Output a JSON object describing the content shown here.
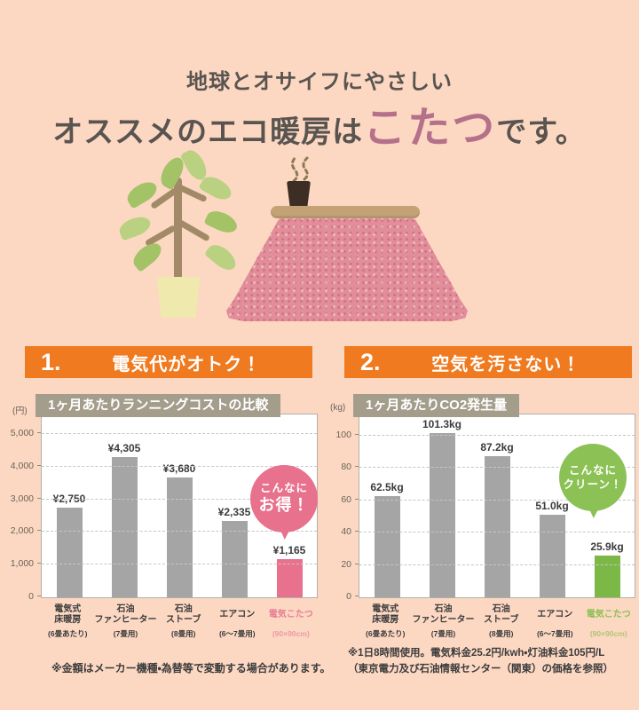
{
  "page": {
    "background": "#fcd8c3"
  },
  "header": {
    "subtitle": "地球とオサイフにやさしい",
    "title_prefix": "オススメのエコ暖房は",
    "title_highlight": "こたつ",
    "title_suffix": "です。",
    "highlight_color": "#b5718a"
  },
  "sections": [
    {
      "number": "1.",
      "label": "電気代がオトク！"
    },
    {
      "number": "2.",
      "label": "空気を汚さない！"
    }
  ],
  "chart_data": [
    {
      "type": "bar",
      "title": "1ヶ月あたりランニングコストの比較",
      "unit_label": "(円)",
      "xlabel": "",
      "ylabel": "円",
      "ylim": [
        0,
        5600
      ],
      "grid": "dashed-horizontal",
      "yticks": [
        0,
        1000,
        2000,
        3000,
        4000,
        5000
      ],
      "ytick_labels": [
        "0",
        "1,000",
        "2,000",
        "3,000",
        "4,000",
        "5,000"
      ],
      "categories": [
        {
          "label_lines": [
            "電気式",
            "床暖房"
          ],
          "sub": "(6畳あたり)"
        },
        {
          "label_lines": [
            "石油",
            "ファンヒーター"
          ],
          "sub": "(7畳用)"
        },
        {
          "label_lines": [
            "石油",
            "ストーブ"
          ],
          "sub": "(8畳用)"
        },
        {
          "label_lines": [
            "エアコン"
          ],
          "sub": "(6〜7畳用)"
        },
        {
          "label_lines": [
            "電気こたつ"
          ],
          "sub": "(90×90cm)"
        }
      ],
      "values": [
        2750,
        4305,
        3680,
        2335,
        1165
      ],
      "value_labels": [
        "¥2,750",
        "¥4,305",
        "¥3,680",
        "¥2,335",
        "¥1,165"
      ],
      "bar_color": "#a5a5a5",
      "highlight_index": 4,
      "highlight_color": "#e8718d",
      "highlight_label_color": "#e87e96",
      "bubble": {
        "lines": [
          "こんなに",
          "お得！"
        ],
        "emphasis_index": 1,
        "color": "#e8718d"
      }
    },
    {
      "type": "bar",
      "title": "1ヶ月あたりCO2発生量",
      "unit_label": "(kg)",
      "xlabel": "",
      "ylabel": "kg",
      "ylim": [
        0,
        113
      ],
      "grid": "dashed-horizontal",
      "yticks": [
        0,
        20,
        40,
        60,
        80,
        100
      ],
      "ytick_labels": [
        "0",
        "20",
        "40",
        "60",
        "80",
        "100"
      ],
      "categories": [
        {
          "label_lines": [
            "電気式",
            "床暖房"
          ],
          "sub": "(6畳あたり)"
        },
        {
          "label_lines": [
            "石油",
            "ファンヒーター"
          ],
          "sub": "(7畳用)"
        },
        {
          "label_lines": [
            "石油",
            "ストーブ"
          ],
          "sub": "(8畳用)"
        },
        {
          "label_lines": [
            "エアコン"
          ],
          "sub": "(6〜7畳用)"
        },
        {
          "label_lines": [
            "電気こたつ"
          ],
          "sub": "(90×90cm)"
        }
      ],
      "values": [
        62.5,
        101.3,
        87.2,
        51.0,
        25.9
      ],
      "value_labels": [
        "62.5kg",
        "101.3kg",
        "87.2kg",
        "51.0kg",
        "25.9kg"
      ],
      "bar_color": "#a5a5a5",
      "highlight_index": 4,
      "highlight_color": "#7cb845",
      "highlight_label_color": "#8cbf52",
      "bubble": {
        "lines": [
          "こんなに",
          "クリーン！"
        ],
        "emphasis_index": -1,
        "color": "#8cc155"
      }
    }
  ],
  "footnotes": {
    "left": "※金額はメーカー機種・為替等で変動する場合があります。",
    "right_line1": "※1日8時間使用。電気料金25.2円/kwh・灯油料金105円/L",
    "right_line2": "（東京電力及び石油情報センター（関東）の価格を参照）"
  }
}
